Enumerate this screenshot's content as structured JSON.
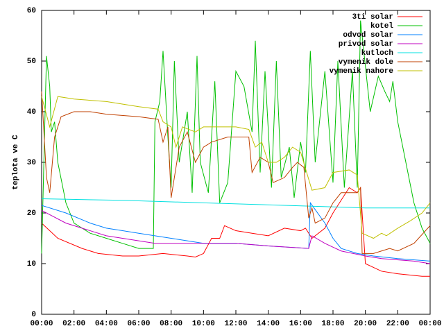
{
  "chart_data": {
    "type": "line",
    "y_label": "teplota ve C",
    "xlim": [
      0,
      24
    ],
    "ylim": [
      0,
      60
    ],
    "xticks": [
      {
        "value": 0,
        "label": "00:00"
      },
      {
        "value": 2,
        "label": "02:00"
      },
      {
        "value": 4,
        "label": "04:00"
      },
      {
        "value": 6,
        "label": "06:00"
      },
      {
        "value": 8,
        "label": "08:00"
      },
      {
        "value": 10,
        "label": "10:00"
      },
      {
        "value": 12,
        "label": "12:00"
      },
      {
        "value": 14,
        "label": "14:00"
      },
      {
        "value": 16,
        "label": "16:00"
      },
      {
        "value": 18,
        "label": "18:00"
      },
      {
        "value": 20,
        "label": "20:00"
      },
      {
        "value": 22,
        "label": "22:00"
      },
      {
        "value": 24,
        "label": "00:00"
      }
    ],
    "yticks": [
      0,
      10,
      20,
      30,
      40,
      50,
      60
    ],
    "grid": false,
    "legend": "top-right",
    "series": [
      {
        "name": "3ti solar",
        "color": "#ff0000",
        "x": [
          0,
          1,
          2.5,
          3.5,
          5,
          6,
          7.5,
          9,
          9.5,
          10,
          10.5,
          11,
          11.3,
          12,
          13,
          14,
          15,
          16,
          16.3,
          16.7,
          17.5,
          18,
          19,
          19.5,
          19.7,
          20,
          21,
          22,
          23.5,
          24
        ],
        "values": [
          18,
          15,
          13,
          12,
          11.5,
          11.5,
          12,
          11.5,
          11.3,
          12,
          15,
          15,
          17.5,
          16.5,
          16,
          15.5,
          17,
          16.5,
          17,
          15,
          17,
          20,
          25,
          24,
          25,
          10,
          8.5,
          8,
          7.5,
          7.5
        ]
      },
      {
        "name": "kotel",
        "color": "#00c000",
        "x": [
          0,
          0.3,
          0.5,
          0.6,
          0.8,
          1,
          1.5,
          2,
          3,
          4,
          5,
          6,
          6.9,
          7,
          7.3,
          7.5,
          7.8,
          8,
          8.2,
          8.5,
          9,
          9.3,
          9.6,
          9.8,
          10.3,
          10.7,
          11,
          11.5,
          12,
          12.5,
          13,
          13.2,
          13.5,
          13.8,
          14.2,
          14.5,
          14.8,
          15.3,
          15.6,
          16,
          16.3,
          16.6,
          16.9,
          17.5,
          18,
          18.3,
          18.7,
          19.2,
          19.5,
          19.7,
          20.3,
          20.8,
          21.2,
          21.5,
          21.7,
          22,
          22.5,
          23,
          23.5,
          24
        ],
        "values": [
          12,
          51,
          45,
          36,
          38,
          30,
          22,
          18,
          16,
          15,
          14,
          13,
          13,
          38,
          42,
          52,
          35,
          25,
          50,
          30,
          40,
          24,
          51,
          30,
          24,
          46,
          22,
          26,
          48,
          45,
          36,
          54,
          28,
          48,
          25,
          50,
          27,
          33,
          23,
          34,
          28,
          52,
          30,
          48,
          26,
          50,
          25,
          48,
          25,
          58,
          40,
          47,
          44,
          42,
          46,
          38,
          30,
          22,
          17,
          14
        ]
      },
      {
        "name": "odvod solar",
        "color": "#0080ff",
        "x": [
          0,
          1.5,
          3,
          4,
          5,
          6,
          7,
          8,
          9,
          10,
          12,
          14,
          16.5,
          16.6,
          17.5,
          18,
          18.5,
          19.5,
          20.5,
          22,
          24
        ],
        "values": [
          21.5,
          20,
          18,
          17,
          16.5,
          16,
          15.5,
          15,
          14.5,
          14,
          14,
          13.5,
          13,
          22,
          18,
          15,
          13,
          12,
          11.5,
          11,
          10.5
        ]
      },
      {
        "name": "privod solar",
        "color": "#c000c0",
        "x": [
          0,
          1.5,
          3,
          4,
          5,
          6,
          7,
          8,
          10,
          12,
          14,
          16.5,
          16.7,
          17.5,
          18.5,
          20,
          21,
          23,
          24
        ],
        "values": [
          20.5,
          18,
          16.5,
          15.5,
          15,
          14.5,
          14,
          14,
          14,
          14,
          13.5,
          13,
          15.5,
          14,
          12.5,
          11.5,
          11,
          10.5,
          10
        ]
      },
      {
        "name": "kutloch",
        "color": "#00e0e0",
        "x": [
          0,
          5,
          10,
          15,
          20,
          24
        ],
        "values": [
          22.8,
          22.5,
          22,
          21.5,
          21,
          21
        ]
      },
      {
        "name": "vymenik dole",
        "color": "#c04000",
        "x": [
          0,
          0.3,
          0.5,
          0.8,
          1.2,
          2,
          3,
          4,
          6,
          7.2,
          7.5,
          7.8,
          8,
          8.5,
          9,
          9.5,
          10,
          10.5,
          11.5,
          12.5,
          12.8,
          13,
          13.5,
          14,
          14.3,
          15,
          15.5,
          15.8,
          16.2,
          16.5,
          16.7,
          16.9,
          17.5,
          18,
          18.5,
          19.5,
          19.7,
          19.8,
          20.5,
          21,
          21.5,
          22,
          23,
          24
        ],
        "values": [
          44,
          27,
          24,
          35,
          39,
          40,
          40,
          39.5,
          39,
          38.5,
          34,
          37,
          23,
          33,
          36,
          30,
          33,
          34,
          35,
          35,
          35,
          28,
          31,
          30,
          26,
          27,
          29,
          30,
          29,
          19,
          21,
          18,
          19,
          22,
          24,
          24,
          25,
          12,
          12,
          12.5,
          13,
          12.5,
          14,
          17.5
        ]
      },
      {
        "name": "vymenik nahore",
        "color": "#c0c000",
        "x": [
          0,
          0.5,
          1,
          2,
          4,
          6,
          7.2,
          7.5,
          8,
          8.3,
          8.7,
          9.5,
          10,
          11,
          12,
          12.8,
          13.2,
          13.6,
          14,
          14.5,
          15,
          15.5,
          16,
          16.7,
          17.5,
          18,
          19,
          19.5,
          19.8,
          20.5,
          21,
          21.3,
          22,
          22.8,
          23.5,
          24
        ],
        "values": [
          43,
          37,
          43,
          42.5,
          42,
          41,
          40.5,
          38,
          37,
          33,
          37,
          36,
          37,
          37,
          37,
          36.5,
          33,
          34,
          30,
          30,
          31,
          33,
          32,
          24.5,
          25,
          28,
          28.5,
          27.5,
          16,
          15,
          16,
          15.5,
          17,
          18.5,
          20,
          22
        ]
      }
    ]
  }
}
